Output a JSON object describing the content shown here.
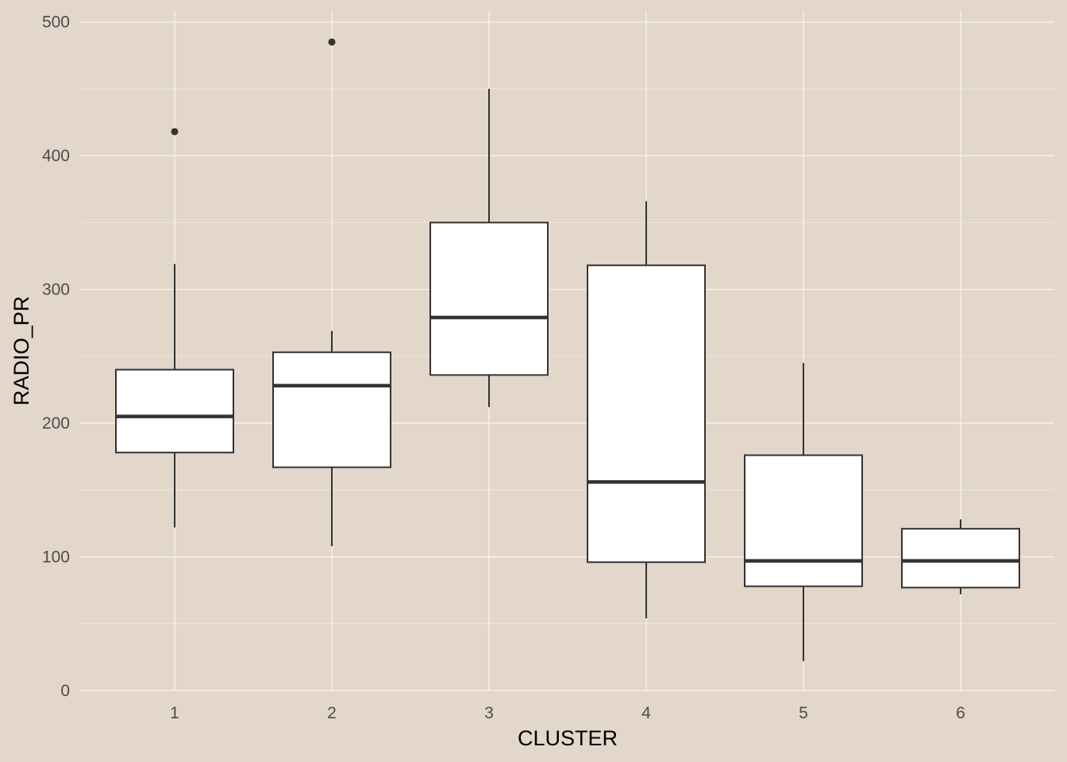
{
  "chart_data": {
    "type": "box",
    "title": "",
    "xlabel": "CLUSTER",
    "ylabel": "RADIO_PR",
    "categories": [
      "1",
      "2",
      "3",
      "4",
      "5",
      "6"
    ],
    "ylim": [
      0,
      510
    ],
    "yticks": [
      0,
      100,
      200,
      300,
      400,
      500
    ],
    "grid": true,
    "boxes": [
      {
        "category": "1",
        "whisker_low": 122,
        "q1": 178,
        "median": 205,
        "q3": 240,
        "whisker_high": 319,
        "outliers": [
          418
        ]
      },
      {
        "category": "2",
        "whisker_low": 108,
        "q1": 167,
        "median": 228,
        "q3": 253,
        "whisker_high": 269,
        "outliers": [
          485
        ]
      },
      {
        "category": "3",
        "whisker_low": 212,
        "q1": 236,
        "median": 279,
        "q3": 350,
        "whisker_high": 450,
        "outliers": []
      },
      {
        "category": "4",
        "whisker_low": 54,
        "q1": 96,
        "median": 156,
        "q3": 318,
        "whisker_high": 366,
        "outliers": []
      },
      {
        "category": "5",
        "whisker_low": 22,
        "q1": 78,
        "median": 97,
        "q3": 176,
        "whisker_high": 245,
        "outliers": []
      },
      {
        "category": "6",
        "whisker_low": 72,
        "q1": 77,
        "median": 97,
        "q3": 121,
        "whisker_high": 128,
        "outliers": []
      }
    ],
    "colors": {
      "background": "#e3d6ca",
      "box_fill": "#ffffff",
      "box_stroke": "#333333",
      "grid": "#f6efe8"
    }
  }
}
